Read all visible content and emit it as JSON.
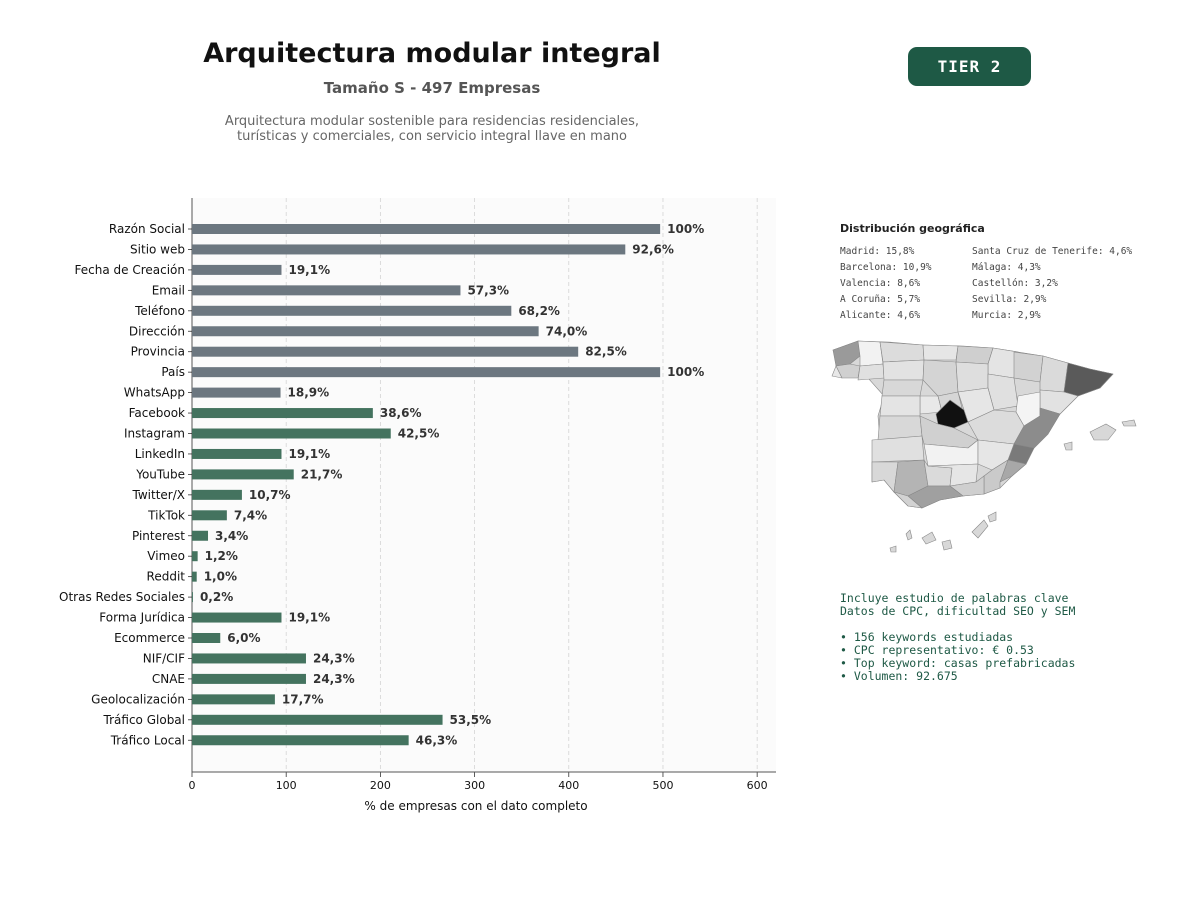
{
  "header": {
    "title": "Arquitectura modular integral",
    "subtitle": "Tamaño S - 497 Empresas",
    "description_line1": "Arquitectura modular sostenible para residencias residenciales,",
    "description_line2": "turísticas y comerciales, con servicio integral llave en mano",
    "tier": "TIER 2"
  },
  "colors": {
    "contact_bar": "#6c7780",
    "other_bar": "#44735f",
    "badge": "#1e5945"
  },
  "chart_data": {
    "type": "bar",
    "orientation": "horizontal",
    "xlabel": "% de empresas con el dato completo",
    "ylabel": "",
    "xlim": [
      0,
      620
    ],
    "xticks": [
      0,
      100,
      200,
      300,
      400,
      500,
      600
    ],
    "grid": "vertical dashed",
    "categories": [
      "Razón Social",
      "Sitio web",
      "Fecha de Creación",
      "Email",
      "Teléfono",
      "Dirección",
      "Provincia",
      "País",
      "WhatsApp",
      "Facebook",
      "Instagram",
      "LinkedIn",
      "YouTube",
      "Twitter/X",
      "TikTok",
      "Pinterest",
      "Vimeo",
      "Reddit",
      "Otras Redes Sociales",
      "Forma Jurídica",
      "Ecommerce",
      "NIF/CIF",
      "CNAE",
      "Geolocalización",
      "Tráfico Global",
      "Tráfico Local"
    ],
    "values": [
      497,
      460,
      95,
      285,
      339,
      368,
      410,
      497,
      94,
      192,
      211,
      95,
      108,
      53,
      37,
      17,
      6,
      5,
      1,
      95,
      30,
      121,
      121,
      88,
      266,
      230
    ],
    "labels": [
      "100%",
      "92,6%",
      "19,1%",
      "57,3%",
      "68,2%",
      "74,0%",
      "82,5%",
      "100%",
      "18,9%",
      "38,6%",
      "42,5%",
      "19,1%",
      "21,7%",
      "10,7%",
      "7,4%",
      "3,4%",
      "1,2%",
      "1,0%",
      "0,2%",
      "19,1%",
      "6,0%",
      "24,3%",
      "24,3%",
      "17,7%",
      "53,5%",
      "46,3%"
    ],
    "groups": [
      "contact",
      "contact",
      "contact",
      "contact",
      "contact",
      "contact",
      "contact",
      "contact",
      "contact",
      "other",
      "other",
      "other",
      "other",
      "other",
      "other",
      "other",
      "other",
      "other",
      "other",
      "other",
      "other",
      "other",
      "other",
      "other",
      "other",
      "other"
    ]
  },
  "geo": {
    "title": "Distribución geográfica",
    "items": [
      "Madrid: 15,8%",
      "Barcelona: 10,9%",
      "Valencia: 8,6%",
      "A Coruña: 5,7%",
      "Alicante: 4,6%",
      "Santa Cruz de Tenerife: 4,6%",
      "Málaga: 4,3%",
      "Castellón: 3,2%",
      "Sevilla: 2,9%",
      "Murcia: 2,9%"
    ]
  },
  "keywords": {
    "line1": "Incluye estudio de palabras clave",
    "line2": "Datos de CPC, dificultad SEO y SEM",
    "bullets": [
      "• 156 keywords estudiadas",
      "• CPC representativo: € 0.53",
      "• Top keyword: casas prefabricadas",
      "• Volumen: 92.675"
    ]
  }
}
